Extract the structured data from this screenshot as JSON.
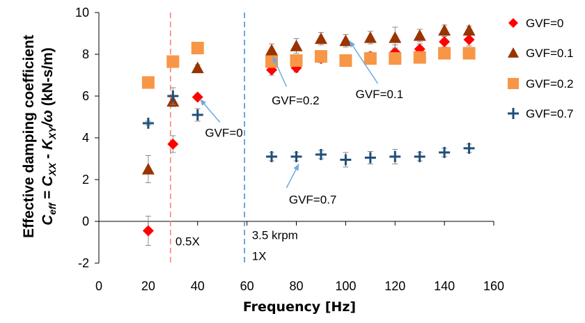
{
  "chart_data": {
    "type": "scatter",
    "xlabel": "Frequency [Hz]",
    "ylabel_line1": "Effective damping coefficient",
    "ylabel_line2": {
      "C": "C",
      "eff": "eff",
      "eq": " = ",
      "Cxx": "XX",
      "minus": " - ",
      "K": "K",
      "Kxy": "XY",
      "omega": "/ω",
      "units": " (kN-s/m)"
    },
    "xlim": [
      0,
      160
    ],
    "ylim": [
      -2,
      10
    ],
    "xticks": [
      0,
      20,
      40,
      60,
      80,
      100,
      120,
      140,
      160
    ],
    "yticks": [
      -2,
      0,
      2,
      4,
      6,
      8,
      10
    ],
    "grid": false,
    "legend_position": "right",
    "series": [
      {
        "name": "GVF=0",
        "marker": "diamond",
        "color": "#ff0000",
        "x": [
          20,
          30,
          40,
          70,
          80,
          90,
          100,
          110,
          120,
          130,
          140,
          150
        ],
        "y": [
          -0.45,
          3.7,
          5.95,
          7.25,
          7.35,
          7.8,
          7.7,
          7.9,
          8.1,
          8.25,
          8.6,
          8.7
        ],
        "err": [
          0.7,
          0.4,
          0.15,
          0.25,
          0.2,
          0.2,
          0.25,
          0.2,
          0.35,
          0.25,
          0.25,
          0.3
        ]
      },
      {
        "name": "GVF=0.1",
        "marker": "triangle",
        "color": "#993300",
        "x": [
          20,
          30,
          40,
          70,
          80,
          90,
          100,
          110,
          120,
          130,
          140,
          150
        ],
        "y": [
          2.5,
          5.75,
          7.35,
          8.2,
          8.4,
          8.75,
          8.65,
          8.8,
          8.8,
          8.9,
          9.15,
          9.15
        ],
        "err": [
          0.65,
          0.25,
          0.15,
          0.3,
          0.35,
          0.3,
          0.3,
          0.3,
          0.5,
          0.3,
          0.25,
          0.2
        ]
      },
      {
        "name": "GVF=0.2",
        "marker": "square",
        "color": "#f79646",
        "x": [
          20,
          30,
          40,
          70,
          80,
          90,
          100,
          110,
          120,
          130,
          140,
          150
        ],
        "y": [
          6.65,
          7.65,
          8.3,
          7.65,
          7.7,
          7.9,
          7.7,
          7.8,
          7.8,
          7.85,
          8.05,
          8.05
        ],
        "err": [
          0.1,
          0.1,
          0.1,
          0.2,
          0.2,
          0.2,
          0.25,
          0.2,
          0.2,
          0.2,
          0.2,
          0.2
        ]
      },
      {
        "name": "GVF=0.7",
        "marker": "plus",
        "color": "#1f4e79",
        "x": [
          20,
          30,
          40,
          70,
          80,
          90,
          100,
          110,
          120,
          130,
          140,
          150
        ],
        "y": [
          4.7,
          6.0,
          5.1,
          3.1,
          3.1,
          3.2,
          2.95,
          3.05,
          3.1,
          3.1,
          3.3,
          3.5
        ],
        "err": [
          0.1,
          0.4,
          0.3,
          0.2,
          0.2,
          0.2,
          0.35,
          0.3,
          0.35,
          0.2,
          0.2,
          0.2
        ]
      }
    ],
    "vlines": [
      {
        "x": 29,
        "color": "#ff7f7f"
      },
      {
        "x": 59,
        "color": "#4a90d0"
      }
    ],
    "vline_labels": [
      {
        "text": "0.5X",
        "x": 31,
        "y": -0.95
      },
      {
        "text": "3.5 krpm",
        "x": 62,
        "y": -0.65
      },
      {
        "text": "1X",
        "x": 62,
        "y": -1.65
      }
    ],
    "annotations": [
      {
        "text": "GVF=0.2",
        "x": 70,
        "y": 5.8,
        "arrow_from": [
          76,
          6.45
        ],
        "arrow_to": [
          70.5,
          7.9
        ]
      },
      {
        "text": "GVF=0.1",
        "x": 104,
        "y": 6.1,
        "arrow_from": [
          113,
          6.6
        ],
        "arrow_to": [
          101.5,
          8.65
        ]
      },
      {
        "text": "GVF=0",
        "x": 43,
        "y": 4.25,
        "arrow_from": [
          49,
          4.75
        ],
        "arrow_to": [
          41,
          5.85
        ]
      },
      {
        "text": "GVF=0.7",
        "x": 77,
        "y": 1.05,
        "arrow_from": [
          76,
          1.6
        ],
        "arrow_to": [
          81,
          2.75
        ]
      }
    ]
  }
}
